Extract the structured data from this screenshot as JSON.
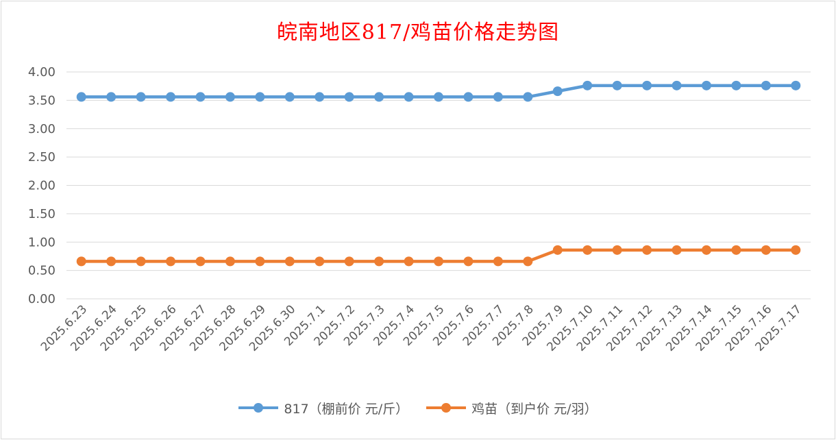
{
  "chart_data": {
    "type": "line",
    "title": "皖南地区817/鸡苗价格走势图",
    "categories": [
      "2025.6.23",
      "2025.6.24",
      "2025.6.25",
      "2025.6.26",
      "2025.6.27",
      "2025.6.28",
      "2025.6.29",
      "2025.6.30",
      "2025.7.1",
      "2025.7.2",
      "2025.7.3",
      "2025.7.4",
      "2025.7.5",
      "2025.7.6",
      "2025.7.7",
      "2025.7.8",
      "2025.7.9",
      "2025.7.10",
      "2025.7.11",
      "2025.7.12",
      "2025.7.13",
      "2025.7.14",
      "2025.7.15",
      "2025.7.16",
      "2025.7.17"
    ],
    "ylim": [
      0,
      4
    ],
    "yticks": [
      "0.00",
      "0.50",
      "1.00",
      "1.50",
      "2.00",
      "2.50",
      "3.00",
      "3.50",
      "4.00"
    ],
    "grid": true,
    "legend_position": "bottom",
    "series": [
      {
        "name": "817（棚前价 元/斤）",
        "color": "#5b9bd5",
        "values": [
          3.56,
          3.56,
          3.56,
          3.56,
          3.56,
          3.56,
          3.56,
          3.56,
          3.56,
          3.56,
          3.56,
          3.56,
          3.56,
          3.56,
          3.56,
          3.56,
          3.66,
          3.76,
          3.76,
          3.76,
          3.76,
          3.76,
          3.76,
          3.76,
          3.76
        ]
      },
      {
        "name": "鸡苗（到户价 元/羽）",
        "color": "#ed7d31",
        "values": [
          0.66,
          0.66,
          0.66,
          0.66,
          0.66,
          0.66,
          0.66,
          0.66,
          0.66,
          0.66,
          0.66,
          0.66,
          0.66,
          0.66,
          0.66,
          0.66,
          0.86,
          0.86,
          0.86,
          0.86,
          0.86,
          0.86,
          0.86,
          0.86,
          0.86
        ]
      }
    ]
  }
}
